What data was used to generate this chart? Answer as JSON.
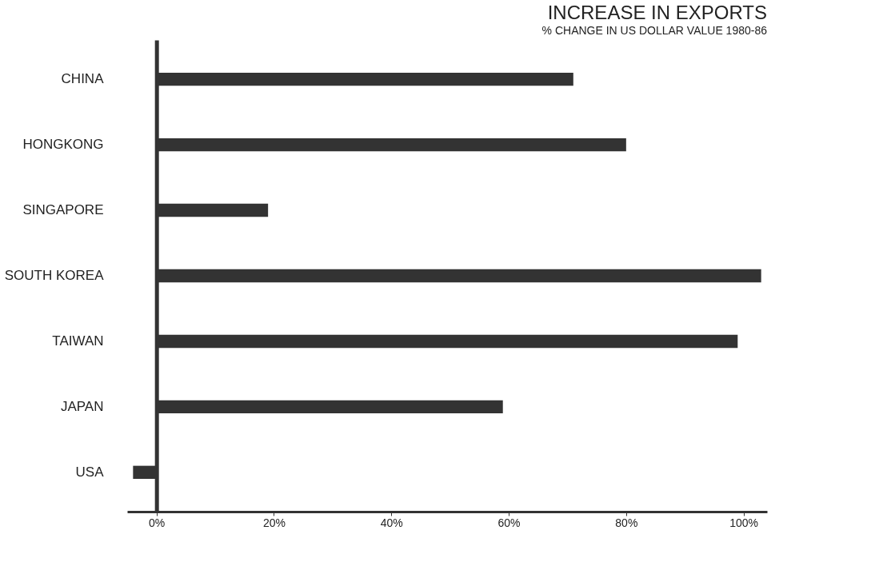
{
  "chart_data": {
    "type": "bar",
    "orientation": "horizontal",
    "title": "INCREASE IN EXPORTS",
    "subtitle": "% CHANGE IN US DOLLAR VALUE 1980-86",
    "categories": [
      "CHINA",
      "HONGKONG",
      "SINGAPORE",
      "SOUTH KOREA",
      "TAIWAN",
      "JAPAN",
      "USA"
    ],
    "values": [
      71,
      80,
      19,
      103,
      99,
      59,
      -4
    ],
    "color": "#333333",
    "xlim": [
      -5,
      104
    ],
    "xticks": [
      {
        "value": 0,
        "label": "0%"
      },
      {
        "value": 20,
        "label": "20%"
      },
      {
        "value": 40,
        "label": "40%"
      },
      {
        "value": 60,
        "label": "60%"
      },
      {
        "value": 80,
        "label": "80%"
      },
      {
        "value": 100,
        "label": "100%"
      }
    ],
    "xlabel": null
  }
}
